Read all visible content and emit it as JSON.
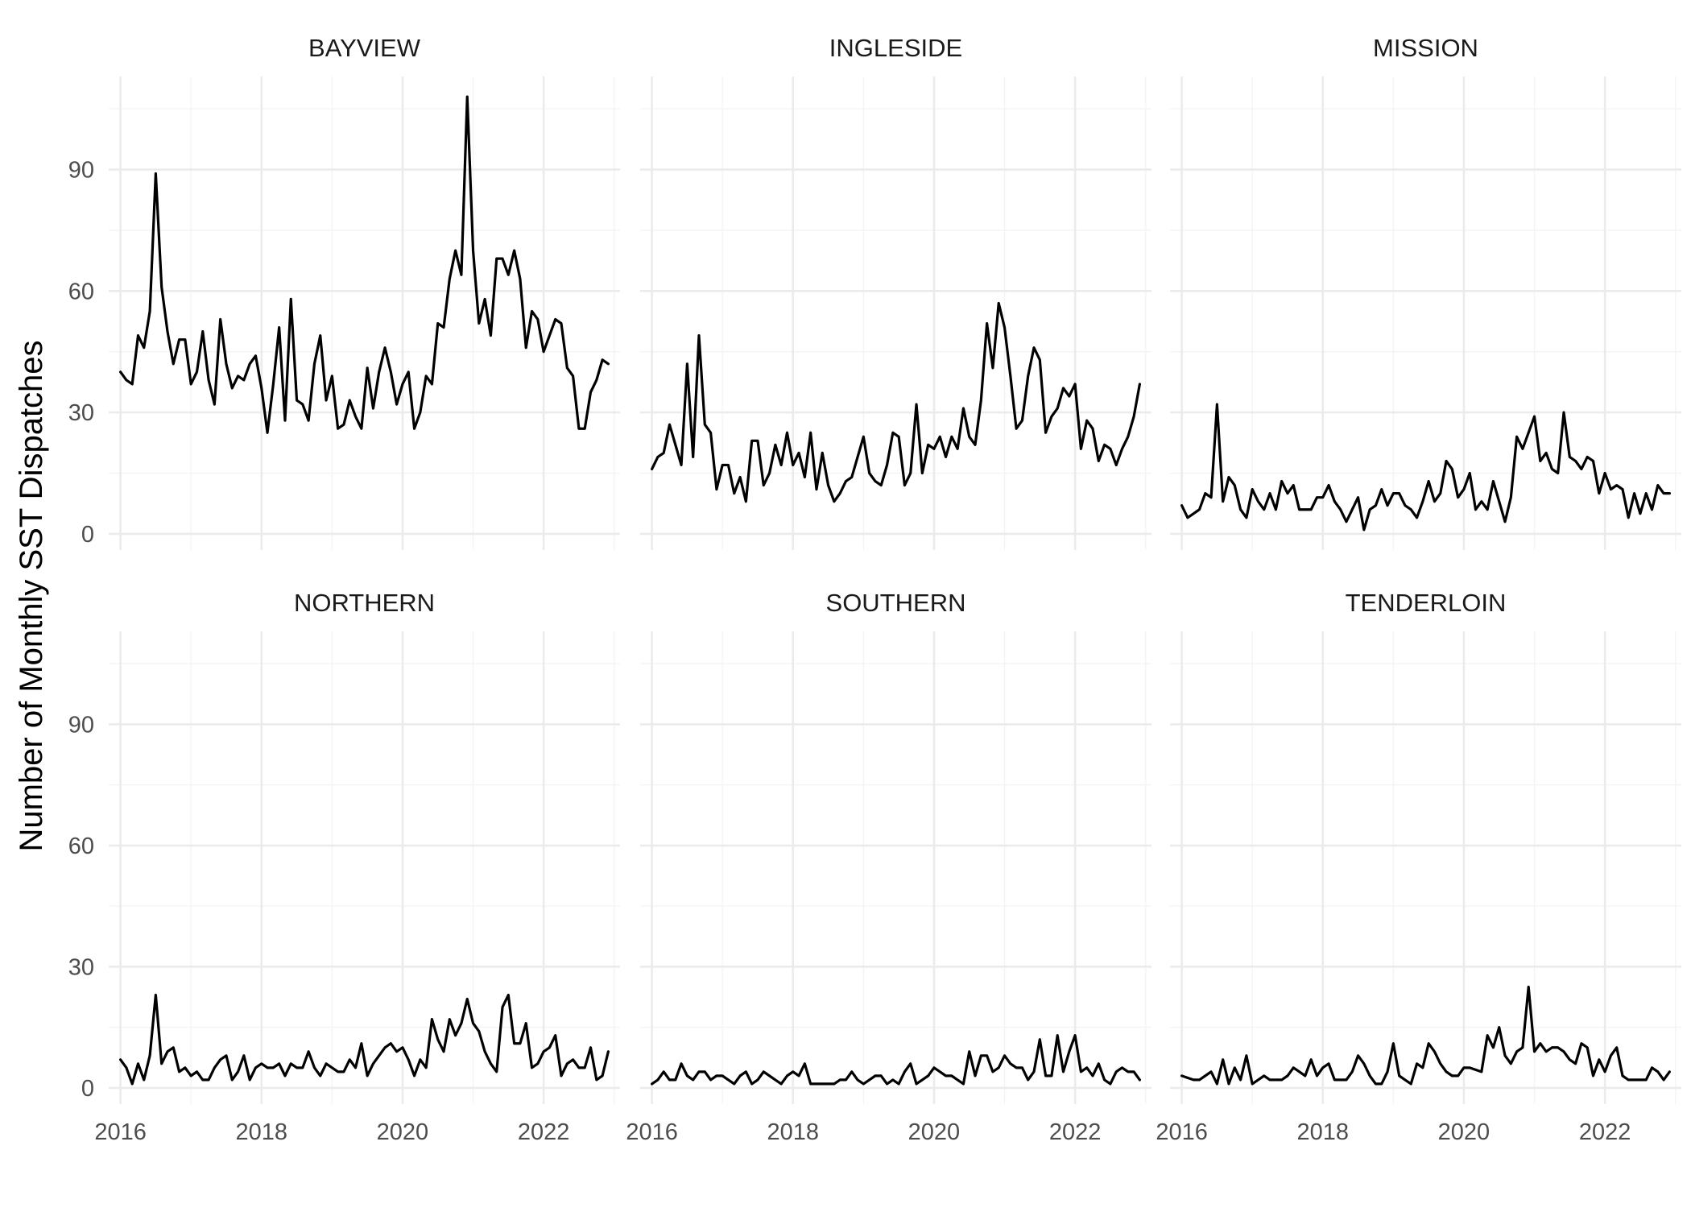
{
  "chart_data": {
    "type": "line",
    "layout": "facet grid 2 rows x 3 columns, shared axes",
    "ylabel": "Number of Monthly SST Dispatches",
    "xlabel": "",
    "x_start": "2016-01",
    "x_frequency": "monthly",
    "x_ticks": [
      "2016",
      "2018",
      "2020",
      "2022"
    ],
    "y_ticks": [
      "0",
      "30",
      "60",
      "90"
    ],
    "xlim": [
      "2015-11",
      "2023-02"
    ],
    "ylim": [
      -4,
      113
    ],
    "grid": true,
    "line_color": "#000000",
    "panels": [
      {
        "name": "BAYVIEW",
        "values": [
          40,
          38,
          37,
          49,
          46,
          55,
          89,
          61,
          50,
          42,
          48,
          48,
          37,
          40,
          50,
          38,
          32,
          53,
          42,
          36,
          39,
          38,
          42,
          44,
          36,
          25,
          37,
          51,
          28,
          58,
          33,
          32,
          28,
          42,
          49,
          33,
          39,
          26,
          27,
          33,
          29,
          26,
          41,
          31,
          40,
          46,
          40,
          32,
          37,
          40,
          26,
          30,
          39,
          37,
          52,
          51,
          63,
          70,
          64,
          108,
          70,
          52,
          58,
          49,
          68,
          68,
          64,
          70,
          63,
          46,
          55,
          53,
          45,
          49,
          53,
          52,
          41,
          39,
          26,
          26,
          35,
          38,
          43,
          42
        ]
      },
      {
        "name": "INGLESIDE",
        "values": [
          16,
          19,
          20,
          27,
          22,
          17,
          42,
          19,
          49,
          27,
          25,
          11,
          17,
          17,
          10,
          14,
          8,
          23,
          23,
          12,
          15,
          22,
          17,
          25,
          17,
          20,
          14,
          25,
          11,
          20,
          12,
          8,
          10,
          13,
          14,
          19,
          24,
          15,
          13,
          12,
          17,
          25,
          24,
          12,
          15,
          32,
          15,
          22,
          21,
          24,
          19,
          24,
          21,
          31,
          24,
          22,
          33,
          52,
          41,
          57,
          51,
          39,
          26,
          28,
          39,
          46,
          43,
          25,
          29,
          31,
          36,
          34,
          37,
          21,
          28,
          26,
          18,
          22,
          21,
          17,
          21,
          24,
          29,
          37
        ]
      },
      {
        "name": "MISSION",
        "values": [
          7,
          4,
          5,
          6,
          10,
          9,
          32,
          8,
          14,
          12,
          6,
          4,
          11,
          8,
          6,
          10,
          6,
          13,
          10,
          12,
          6,
          6,
          6,
          9,
          9,
          12,
          8,
          6,
          3,
          6,
          9,
          1,
          6,
          7,
          11,
          7,
          10,
          10,
          7,
          6,
          4,
          8,
          13,
          8,
          10,
          18,
          16,
          9,
          11,
          15,
          6,
          8,
          6,
          13,
          8,
          3,
          9,
          24,
          21,
          25,
          29,
          18,
          20,
          16,
          15,
          30,
          19,
          18,
          16,
          19,
          18,
          10,
          15,
          11,
          12,
          11,
          4,
          10,
          5,
          10,
          6,
          12,
          10,
          10
        ]
      },
      {
        "name": "NORTHERN",
        "values": [
          7,
          5,
          1,
          6,
          2,
          8,
          23,
          6,
          9,
          10,
          4,
          5,
          3,
          4,
          2,
          2,
          5,
          7,
          8,
          2,
          4,
          8,
          2,
          5,
          6,
          5,
          5,
          6,
          3,
          6,
          5,
          5,
          9,
          5,
          3,
          6,
          5,
          4,
          4,
          7,
          5,
          11,
          3,
          6,
          8,
          10,
          11,
          9,
          10,
          7,
          3,
          7,
          5,
          17,
          12,
          9,
          17,
          13,
          16,
          22,
          16,
          14,
          9,
          6,
          4,
          20,
          23,
          11,
          11,
          16,
          5,
          6,
          9,
          10,
          13,
          3,
          6,
          7,
          5,
          5,
          10,
          2,
          3,
          9
        ]
      },
      {
        "name": "SOUTHERN",
        "values": [
          1,
          2,
          4,
          2,
          2,
          6,
          3,
          2,
          4,
          4,
          2,
          3,
          3,
          2,
          1,
          3,
          4,
          1,
          2,
          4,
          3,
          2,
          1,
          3,
          4,
          3,
          6,
          1,
          1,
          1,
          1,
          1,
          2,
          2,
          4,
          2,
          1,
          2,
          3,
          3,
          1,
          2,
          1,
          4,
          6,
          1,
          2,
          3,
          5,
          4,
          3,
          3,
          2,
          1,
          9,
          3,
          8,
          8,
          4,
          5,
          8,
          6,
          5,
          5,
          2,
          4,
          12,
          3,
          3,
          13,
          4,
          9,
          13,
          4,
          5,
          3,
          6,
          2,
          1,
          4,
          5,
          4,
          4,
          2
        ]
      },
      {
        "name": "TENDERLOIN",
        "values": [
          3,
          2.5,
          2,
          2,
          3,
          4,
          1,
          7,
          1,
          5,
          2,
          8,
          1,
          2,
          3,
          2,
          2,
          2,
          3,
          5,
          4,
          3,
          7,
          3,
          5,
          6,
          2,
          2,
          2,
          4,
          8,
          6,
          3,
          1,
          1,
          4,
          11,
          3,
          2,
          1,
          6,
          5,
          11,
          9,
          6,
          4,
          3,
          3,
          5,
          5,
          4.5,
          4,
          13,
          10,
          15,
          8,
          6,
          9,
          10,
          25,
          9,
          11,
          9,
          10,
          10,
          9,
          7,
          6,
          11,
          10,
          3,
          7,
          4,
          8,
          10,
          3,
          2,
          2,
          2,
          2,
          5,
          4,
          2,
          4
        ]
      }
    ]
  }
}
